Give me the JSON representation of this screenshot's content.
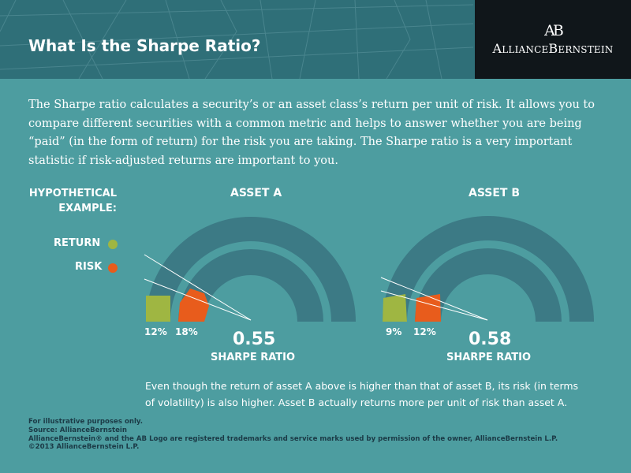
{
  "header": {
    "title": "What Is the Sharpe Ratio?",
    "logo_monogram": "AB",
    "logo_word_1_initial": "A",
    "logo_word_1_rest": "LLIANCE",
    "logo_word_2_initial": "B",
    "logo_word_2_rest": "ERNSTEIN"
  },
  "intro": "The Sharpe ratio calculates a security’s or an asset class’s return per unit of risk. It allows you to compare different securities with a common metric and helps to answer whether you are being “paid” (in the form of return) for the risk you are taking. The Sharpe ratio is a very important statistic if risk-adjusted returns are important to you.",
  "legend": {
    "heading_line1": "HYPOTHETICAL",
    "heading_line2": "EXAMPLE:",
    "return_label": "RETURN",
    "risk_label": "RISK"
  },
  "colors": {
    "return": "#9fb642",
    "risk": "#e85c1c",
    "arc": "#3c7a85",
    "background": "#4d9da0"
  },
  "assets": [
    {
      "title": "ASSET A",
      "return_label": "12%",
      "risk_label": "18%",
      "return_value": 12,
      "risk_value": 18,
      "sharpe": "0.55",
      "sharpe_label": "SHARPE RATIO"
    },
    {
      "title": "ASSET B",
      "return_label": "9%",
      "risk_label": "12%",
      "return_value": 9,
      "risk_value": 12,
      "sharpe": "0.58",
      "sharpe_label": "SHARPE RATIO"
    }
  ],
  "note": "Even though the return of asset A above is higher than that of asset B, its risk (in terms of volatility) is also higher. Asset B actually returns more per unit of risk than asset A.",
  "footer": [
    "For illustrative purposes only.",
    "Source: AllianceBernstein",
    "AllianceBernstein® and the AB Logo are registered trademarks and service marks used by permission of the owner, AllianceBernstein L.P.",
    "©2013 AllianceBernstein L.P."
  ]
}
